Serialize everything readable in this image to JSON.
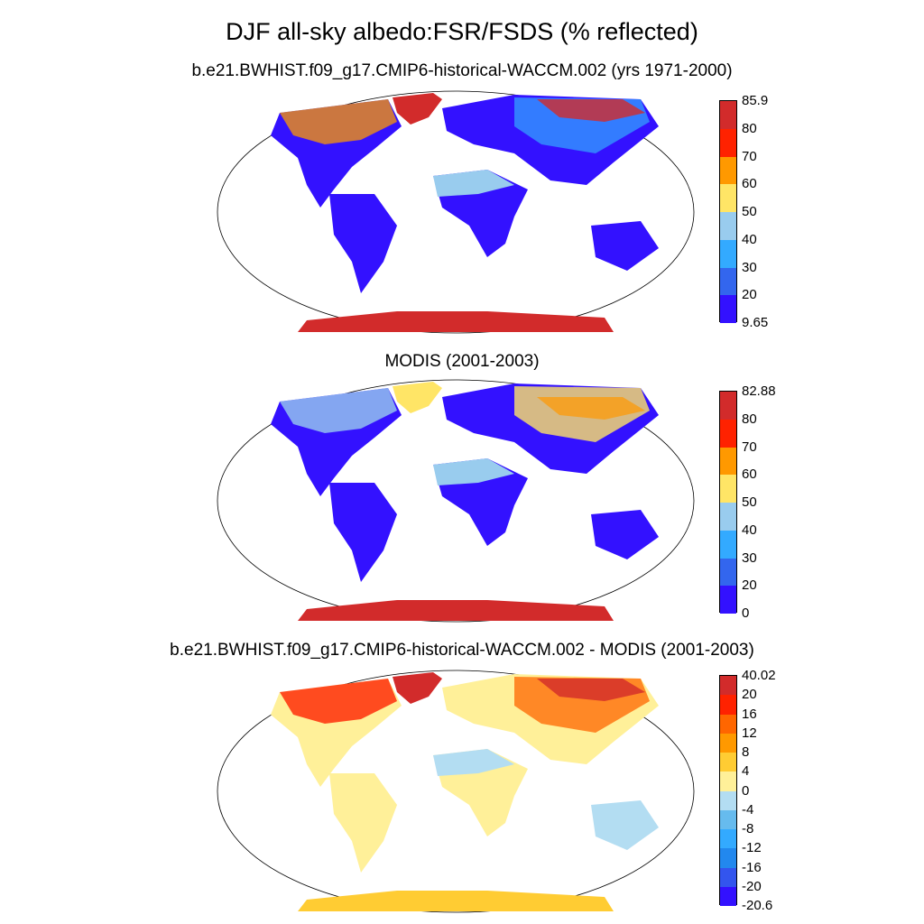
{
  "title": "DJF all-sky albedo:FSR/FSDS (% reflected)",
  "panels": [
    {
      "title": "b.e21.BWHIST.f09_g17.CMIP6-historical-WACCM.002 (yrs 1971-2000)",
      "colorbar": {
        "labels": [
          "85.9",
          "80",
          "70",
          "60",
          "50",
          "40",
          "30",
          "20",
          "9.65"
        ],
        "colors": [
          "#D22B2B",
          "#FF2200",
          "#FF9900",
          "#FFE566",
          "#99CCEE",
          "#33AAFF",
          "#3366EE",
          "#3311FF"
        ]
      }
    },
    {
      "title": "MODIS (2001-2003)",
      "colorbar": {
        "labels": [
          "82.88",
          "80",
          "70",
          "60",
          "50",
          "40",
          "30",
          "20",
          "0"
        ],
        "colors": [
          "#D22B2B",
          "#FF2200",
          "#FF9900",
          "#FFE566",
          "#99CCEE",
          "#33AAFF",
          "#3366EE",
          "#3311FF"
        ]
      }
    },
    {
      "title": "b.e21.BWHIST.f09_g17.CMIP6-historical-WACCM.002 - MODIS (2001-2003)",
      "colorbar": {
        "labels": [
          "40.02",
          "20",
          "16",
          "12",
          "8",
          "4",
          "0",
          "-4",
          "-8",
          "-12",
          "-16",
          "-20",
          "-20.6"
        ],
        "colors": [
          "#D22B2B",
          "#FF2200",
          "#FF6600",
          "#FF9900",
          "#FFCC33",
          "#FFF099",
          "#B3DDF2",
          "#66BBEE",
          "#33AAFF",
          "#2288EE",
          "#3355EE",
          "#3311FF"
        ]
      }
    }
  ]
}
